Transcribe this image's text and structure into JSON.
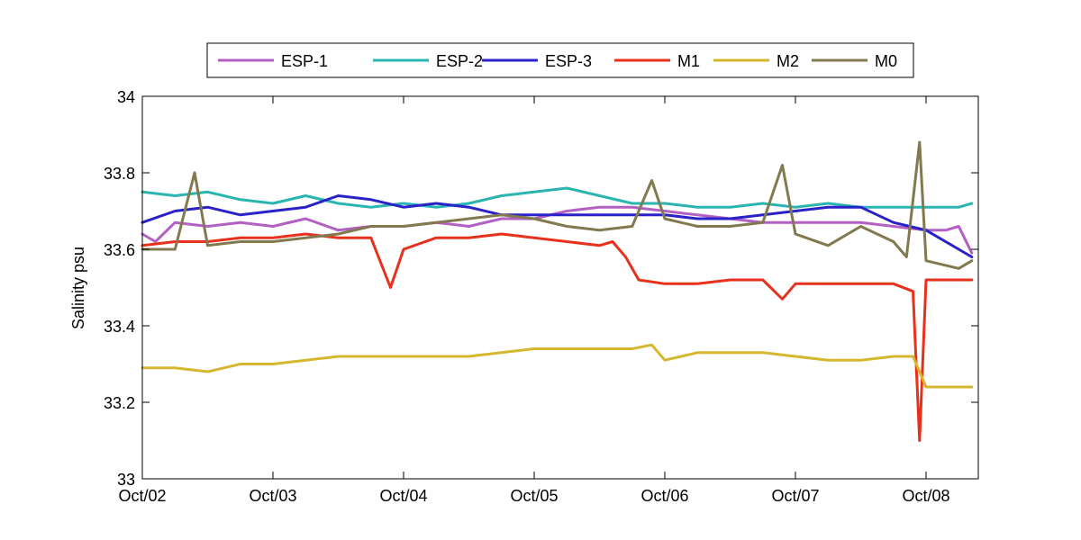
{
  "chart_data": {
    "type": "line",
    "title": "",
    "xlabel": "",
    "ylabel": "Salinity psu",
    "xlim": [
      "2015-10-02T00:00",
      "2015-10-08T09:36"
    ],
    "ylim": [
      33.0,
      34.0
    ],
    "yticks": [
      "33",
      "33.2",
      "33.4",
      "33.6",
      "33.8",
      "34"
    ],
    "ytick_values": [
      33.0,
      33.2,
      33.4,
      33.6,
      33.8,
      34.0
    ],
    "xticks": [
      "Oct/02",
      "Oct/03",
      "Oct/04",
      "Oct/05",
      "Oct/06",
      "Oct/07",
      "Oct/08"
    ],
    "xtick_values": [
      "2015-10-02T00:00",
      "2015-10-03T00:00",
      "2015-10-04T00:00",
      "2015-10-05T00:00",
      "2015-10-06T00:00",
      "2015-10-07T00:00",
      "2015-10-08T00:00"
    ],
    "grid": false,
    "legend_position": "top-center",
    "series": [
      {
        "name": "ESP-1",
        "color": "#b35fc4",
        "x": [
          "2015-10-02T00:00",
          "2015-10-02T02:24",
          "2015-10-02T06:00",
          "2015-10-02T12:00",
          "2015-10-02T18:00",
          "2015-10-03T00:00",
          "2015-10-03T06:00",
          "2015-10-03T12:00",
          "2015-10-03T18:00",
          "2015-10-04T00:00",
          "2015-10-04T06:00",
          "2015-10-04T12:00",
          "2015-10-04T18:00",
          "2015-10-05T00:00",
          "2015-10-05T06:00",
          "2015-10-05T12:00",
          "2015-10-05T18:00",
          "2015-10-06T00:00",
          "2015-10-06T06:00",
          "2015-10-06T12:00",
          "2015-10-06T18:00",
          "2015-10-07T00:00",
          "2015-10-07T06:00",
          "2015-10-07T12:00",
          "2015-10-07T18:00",
          "2015-10-08T00:00",
          "2015-10-08T03:36",
          "2015-10-08T06:00",
          "2015-10-08T08:24"
        ],
        "y": [
          33.64,
          33.62,
          33.67,
          33.66,
          33.67,
          33.66,
          33.68,
          33.65,
          33.66,
          33.66,
          33.67,
          33.66,
          33.68,
          33.68,
          33.7,
          33.71,
          33.71,
          33.7,
          33.69,
          33.68,
          33.67,
          33.67,
          33.67,
          33.67,
          33.66,
          33.65,
          33.65,
          33.66,
          33.59
        ]
      },
      {
        "name": "ESP-2",
        "color": "#2ab5b0",
        "x": [
          "2015-10-02T00:00",
          "2015-10-02T06:00",
          "2015-10-02T12:00",
          "2015-10-02T18:00",
          "2015-10-03T00:00",
          "2015-10-03T06:00",
          "2015-10-03T12:00",
          "2015-10-03T18:00",
          "2015-10-04T00:00",
          "2015-10-04T06:00",
          "2015-10-04T12:00",
          "2015-10-04T18:00",
          "2015-10-05T00:00",
          "2015-10-05T06:00",
          "2015-10-05T12:00",
          "2015-10-05T18:00",
          "2015-10-06T00:00",
          "2015-10-06T06:00",
          "2015-10-06T12:00",
          "2015-10-06T18:00",
          "2015-10-07T00:00",
          "2015-10-07T06:00",
          "2015-10-07T12:00",
          "2015-10-07T18:00",
          "2015-10-08T00:00",
          "2015-10-08T06:00",
          "2015-10-08T08:24"
        ],
        "y": [
          33.75,
          33.74,
          33.75,
          33.73,
          33.72,
          33.74,
          33.72,
          33.71,
          33.72,
          33.71,
          33.72,
          33.74,
          33.75,
          33.76,
          33.74,
          33.72,
          33.72,
          33.71,
          33.71,
          33.72,
          33.71,
          33.72,
          33.71,
          33.71,
          33.71,
          33.71,
          33.72
        ]
      },
      {
        "name": "ESP-3",
        "color": "#2a21c9",
        "x": [
          "2015-10-02T00:00",
          "2015-10-02T06:00",
          "2015-10-02T12:00",
          "2015-10-02T18:00",
          "2015-10-03T00:00",
          "2015-10-03T06:00",
          "2015-10-03T12:00",
          "2015-10-03T18:00",
          "2015-10-04T00:00",
          "2015-10-04T06:00",
          "2015-10-04T12:00",
          "2015-10-04T18:00",
          "2015-10-05T00:00",
          "2015-10-05T06:00",
          "2015-10-05T12:00",
          "2015-10-05T18:00",
          "2015-10-06T00:00",
          "2015-10-06T06:00",
          "2015-10-06T12:00",
          "2015-10-06T18:00",
          "2015-10-07T00:00",
          "2015-10-07T06:00",
          "2015-10-07T12:00",
          "2015-10-07T18:00",
          "2015-10-08T00:00",
          "2015-10-08T06:00",
          "2015-10-08T08:24"
        ],
        "y": [
          33.67,
          33.7,
          33.71,
          33.69,
          33.7,
          33.71,
          33.74,
          33.73,
          33.71,
          33.72,
          33.71,
          33.69,
          33.69,
          33.69,
          33.69,
          33.69,
          33.69,
          33.68,
          33.68,
          33.69,
          33.7,
          33.71,
          33.71,
          33.67,
          33.65,
          33.6,
          33.58
        ]
      },
      {
        "name": "M1",
        "color": "#e8311c",
        "x": [
          "2015-10-02T00:00",
          "2015-10-02T06:00",
          "2015-10-02T12:00",
          "2015-10-02T18:00",
          "2015-10-03T00:00",
          "2015-10-03T06:00",
          "2015-10-03T12:00",
          "2015-10-03T18:00",
          "2015-10-03T21:36",
          "2015-10-04T00:00",
          "2015-10-04T06:00",
          "2015-10-04T12:00",
          "2015-10-04T18:00",
          "2015-10-05T00:00",
          "2015-10-05T06:00",
          "2015-10-05T12:00",
          "2015-10-05T14:24",
          "2015-10-05T16:48",
          "2015-10-05T19:12",
          "2015-10-06T00:00",
          "2015-10-06T06:00",
          "2015-10-06T12:00",
          "2015-10-06T18:00",
          "2015-10-06T21:36",
          "2015-10-07T00:00",
          "2015-10-07T06:00",
          "2015-10-07T12:00",
          "2015-10-07T18:00",
          "2015-10-07T21:36",
          "2015-10-07T22:48",
          "2015-10-08T00:00",
          "2015-10-08T06:00",
          "2015-10-08T08:24"
        ],
        "y": [
          33.61,
          33.62,
          33.62,
          33.63,
          33.63,
          33.64,
          33.63,
          33.63,
          33.5,
          33.6,
          33.63,
          33.63,
          33.64,
          33.63,
          33.62,
          33.61,
          33.62,
          33.58,
          33.52,
          33.51,
          33.51,
          33.52,
          33.52,
          33.47,
          33.51,
          33.51,
          33.51,
          33.51,
          33.49,
          33.1,
          33.52,
          33.52,
          33.52
        ]
      },
      {
        "name": "M2",
        "color": "#d4b72e",
        "x": [
          "2015-10-02T00:00",
          "2015-10-02T06:00",
          "2015-10-02T12:00",
          "2015-10-02T18:00",
          "2015-10-03T00:00",
          "2015-10-03T06:00",
          "2015-10-03T12:00",
          "2015-10-03T18:00",
          "2015-10-04T00:00",
          "2015-10-04T06:00",
          "2015-10-04T12:00",
          "2015-10-04T18:00",
          "2015-10-05T00:00",
          "2015-10-05T06:00",
          "2015-10-05T12:00",
          "2015-10-05T18:00",
          "2015-10-05T21:36",
          "2015-10-06T00:00",
          "2015-10-06T06:00",
          "2015-10-06T12:00",
          "2015-10-06T18:00",
          "2015-10-07T00:00",
          "2015-10-07T06:00",
          "2015-10-07T12:00",
          "2015-10-07T18:00",
          "2015-10-07T21:36",
          "2015-10-08T00:00",
          "2015-10-08T06:00",
          "2015-10-08T08:24"
        ],
        "y": [
          33.29,
          33.29,
          33.28,
          33.3,
          33.3,
          33.31,
          33.32,
          33.32,
          33.32,
          33.32,
          33.32,
          33.33,
          33.34,
          33.34,
          33.34,
          33.34,
          33.35,
          33.31,
          33.33,
          33.33,
          33.33,
          33.32,
          33.31,
          33.31,
          33.32,
          33.32,
          33.24,
          33.24,
          33.24
        ]
      },
      {
        "name": "M0",
        "color": "#827a4e",
        "x": [
          "2015-10-02T00:00",
          "2015-10-02T06:00",
          "2015-10-02T09:36",
          "2015-10-02T12:00",
          "2015-10-02T18:00",
          "2015-10-03T00:00",
          "2015-10-03T06:00",
          "2015-10-03T12:00",
          "2015-10-03T18:00",
          "2015-10-04T00:00",
          "2015-10-04T06:00",
          "2015-10-04T12:00",
          "2015-10-04T18:00",
          "2015-10-05T00:00",
          "2015-10-05T06:00",
          "2015-10-05T12:00",
          "2015-10-05T18:00",
          "2015-10-05T21:36",
          "2015-10-06T00:00",
          "2015-10-06T06:00",
          "2015-10-06T12:00",
          "2015-10-06T18:00",
          "2015-10-06T21:36",
          "2015-10-07T00:00",
          "2015-10-07T06:00",
          "2015-10-07T12:00",
          "2015-10-07T18:00",
          "2015-10-07T20:24",
          "2015-10-07T22:48",
          "2015-10-08T00:00",
          "2015-10-08T06:00",
          "2015-10-08T08:24"
        ],
        "y": [
          33.6,
          33.6,
          33.8,
          33.61,
          33.62,
          33.62,
          33.63,
          33.64,
          33.66,
          33.66,
          33.67,
          33.68,
          33.69,
          33.68,
          33.66,
          33.65,
          33.66,
          33.78,
          33.68,
          33.66,
          33.66,
          33.67,
          33.82,
          33.64,
          33.61,
          33.66,
          33.62,
          33.58,
          33.88,
          33.57,
          33.55,
          33.57
        ]
      }
    ]
  }
}
